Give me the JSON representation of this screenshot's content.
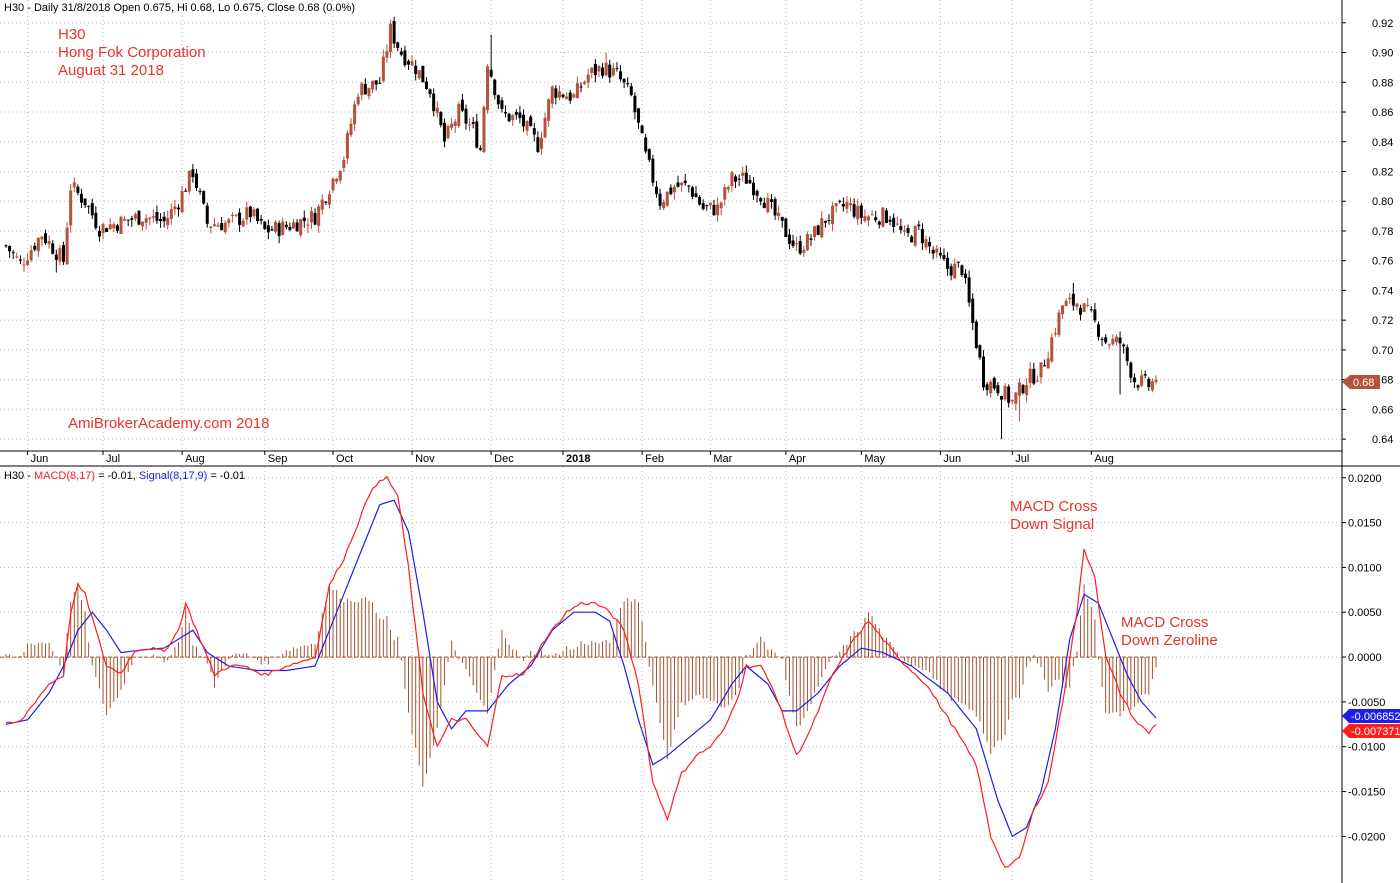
{
  "price_panel": {
    "header_prefix": "H30 - Daily 31/8/2018 Open 0.675, Hi 0.68, Lo 0.675, Close 0.68 (0.0%)",
    "symbol": "H30",
    "company": "Hong Fok Corporation",
    "date_label": "Auguat 31 2018",
    "watermark": "AmiBrokerAcademy.com  2018",
    "last_price_label": "0.68",
    "last_price_color": "#b5523b"
  },
  "macd_panel": {
    "header_prefix": "H30 - ",
    "macd_label": "MACD(8,17)",
    "macd_value_text": " = -0.01, ",
    "signal_label": "Signal(8,17,9)",
    "signal_value_text": " = -0.01",
    "annotation_cross_signal": [
      "MACD Cross",
      "Down Signal"
    ],
    "annotation_cross_zero": [
      "MACD Cross",
      "Down Zeroline"
    ],
    "signal_last_label": "-0.006852",
    "macd_last_label": "-0.007371"
  },
  "colors": {
    "up_candle": "#b5523b",
    "down_candle": "#000000",
    "macd_line": "#ff1e1e",
    "signal_line": "#1e1ee8",
    "histogram": "#a0522d",
    "annotation": "#e8342a",
    "grid": "#bbbbbb"
  },
  "chart_data": [
    {
      "type": "candlestick",
      "title": "H30 - Daily 31/8/2018 Open 0.675, Hi 0.68, Lo 0.675, Close 0.68 (0.0%)",
      "y_ticks": [
        "0.64",
        "0.66",
        "0.68",
        "0.70",
        "0.72",
        "0.74",
        "0.76",
        "0.78",
        "0.80",
        "0.82",
        "0.84",
        "0.86",
        "0.88",
        "0.90",
        "0.92"
      ],
      "ylim": [
        0.632,
        0.934
      ],
      "x_ticks": [
        {
          "label": "Jun",
          "bar": 6,
          "bold": false
        },
        {
          "label": "Jul",
          "bar": 27,
          "bold": false
        },
        {
          "label": "Aug",
          "bar": 49,
          "bold": false
        },
        {
          "label": "Sep",
          "bar": 72,
          "bold": false
        },
        {
          "label": "Oct",
          "bar": 91,
          "bold": false
        },
        {
          "label": "Nov",
          "bar": 113,
          "bold": false
        },
        {
          "label": "Dec",
          "bar": 135,
          "bold": false
        },
        {
          "label": "2018",
          "bar": 155,
          "bold": true
        },
        {
          "label": "Feb",
          "bar": 177,
          "bold": false
        },
        {
          "label": "Mar",
          "bar": 196,
          "bold": false
        },
        {
          "label": "Apr",
          "bar": 217,
          "bold": false
        },
        {
          "label": "May",
          "bar": 238,
          "bold": false
        },
        {
          "label": "Jun",
          "bar": 260,
          "bold": false
        },
        {
          "label": "Jul",
          "bar": 280,
          "bold": false
        },
        {
          "label": "Aug",
          "bar": 302,
          "bold": false
        }
      ],
      "n_bars": 321,
      "close_anchors": [
        [
          0,
          0.77
        ],
        [
          4,
          0.758
        ],
        [
          10,
          0.778
        ],
        [
          16,
          0.76
        ],
        [
          18,
          0.81
        ],
        [
          22,
          0.8
        ],
        [
          26,
          0.782
        ],
        [
          32,
          0.786
        ],
        [
          38,
          0.79
        ],
        [
          44,
          0.786
        ],
        [
          48,
          0.8
        ],
        [
          52,
          0.82
        ],
        [
          56,
          0.785
        ],
        [
          62,
          0.785
        ],
        [
          68,
          0.792
        ],
        [
          72,
          0.78
        ],
        [
          78,
          0.783
        ],
        [
          86,
          0.79
        ],
        [
          90,
          0.81
        ],
        [
          94,
          0.83
        ],
        [
          98,
          0.875
        ],
        [
          104,
          0.88
        ],
        [
          107,
          0.915
        ],
        [
          110,
          0.9
        ],
        [
          114,
          0.89
        ],
        [
          118,
          0.875
        ],
        [
          122,
          0.84
        ],
        [
          126,
          0.86
        ],
        [
          130,
          0.848
        ],
        [
          132,
          0.835
        ],
        [
          134,
          0.895
        ],
        [
          138,
          0.858
        ],
        [
          143,
          0.855
        ],
        [
          148,
          0.838
        ],
        [
          152,
          0.875
        ],
        [
          158,
          0.87
        ],
        [
          162,
          0.885
        ],
        [
          166,
          0.89
        ],
        [
          170,
          0.885
        ],
        [
          174,
          0.87
        ],
        [
          178,
          0.83
        ],
        [
          182,
          0.8
        ],
        [
          186,
          0.81
        ],
        [
          190,
          0.81
        ],
        [
          194,
          0.795
        ],
        [
          198,
          0.795
        ],
        [
          202,
          0.815
        ],
        [
          206,
          0.815
        ],
        [
          210,
          0.805
        ],
        [
          214,
          0.79
        ],
        [
          220,
          0.768
        ],
        [
          224,
          0.775
        ],
        [
          228,
          0.788
        ],
        [
          234,
          0.798
        ],
        [
          238,
          0.79
        ],
        [
          242,
          0.79
        ],
        [
          246,
          0.79
        ],
        [
          250,
          0.775
        ],
        [
          254,
          0.78
        ],
        [
          258,
          0.765
        ],
        [
          262,
          0.755
        ],
        [
          266,
          0.755
        ],
        [
          268,
          0.73
        ],
        [
          272,
          0.68
        ],
        [
          276,
          0.675
        ],
        [
          280,
          0.665
        ],
        [
          284,
          0.68
        ],
        [
          288,
          0.686
        ],
        [
          290,
          0.7
        ],
        [
          294,
          0.73
        ],
        [
          298,
          0.732
        ],
        [
          302,
          0.722
        ],
        [
          306,
          0.706
        ],
        [
          310,
          0.705
        ],
        [
          314,
          0.68
        ],
        [
          318,
          0.676
        ],
        [
          320,
          0.68
        ]
      ],
      "spikes": [
        [
          14,
          "lo",
          0.752
        ],
        [
          19,
          "hi",
          0.816
        ],
        [
          52,
          "hi",
          0.825
        ],
        [
          107,
          "hi",
          0.922
        ],
        [
          135,
          "hi",
          0.912
        ],
        [
          167,
          "hi",
          0.9
        ],
        [
          277,
          "lo",
          0.64
        ],
        [
          282,
          "lo",
          0.652
        ],
        [
          297,
          "hi",
          0.745
        ],
        [
          310,
          "lo",
          0.67
        ]
      ],
      "last_price": 0.68
    },
    {
      "type": "line",
      "title": "H30 - MACD(8,17) = -0.01, Signal(8,17,9) = -0.01",
      "y_ticks": [
        "-0.0200",
        "-0.0150",
        "-0.0100",
        "-0.0050",
        "0.0000",
        "0.0050",
        "0.0100",
        "0.0150",
        "0.0200"
      ],
      "ylim": [
        -0.0252,
        0.0212
      ],
      "series": [
        {
          "name": "MACD(8,17)",
          "anchors": [
            [
              0,
              -0.0075
            ],
            [
              4,
              -0.0072
            ],
            [
              8,
              -0.005
            ],
            [
              12,
              -0.003
            ],
            [
              16,
              -0.002
            ],
            [
              18,
              0.005
            ],
            [
              20,
              0.008
            ],
            [
              22,
              0.007
            ],
            [
              25,
              0.003
            ],
            [
              28,
              -0.001
            ],
            [
              32,
              -0.0018
            ],
            [
              36,
              0.0008
            ],
            [
              40,
              0.001
            ],
            [
              44,
              0.0006
            ],
            [
              48,
              0.003
            ],
            [
              50,
              0.006
            ],
            [
              54,
              0.002
            ],
            [
              58,
              -0.002
            ],
            [
              62,
              -0.001
            ],
            [
              66,
              -0.001
            ],
            [
              72,
              -0.002
            ],
            [
              78,
              -0.001
            ],
            [
              86,
              0.0
            ],
            [
              90,
              0.008
            ],
            [
              94,
              0.011
            ],
            [
              98,
              0.015
            ],
            [
              102,
              0.019
            ],
            [
              106,
              0.02
            ],
            [
              109,
              0.018
            ],
            [
              112,
              0.01
            ],
            [
              116,
              -0.004
            ],
            [
              120,
              -0.01
            ],
            [
              124,
              -0.007
            ],
            [
              128,
              -0.007
            ],
            [
              134,
              -0.01
            ],
            [
              138,
              -0.002
            ],
            [
              144,
              -0.002
            ],
            [
              150,
              0.002
            ],
            [
              156,
              0.005
            ],
            [
              160,
              0.006
            ],
            [
              164,
              0.006
            ],
            [
              168,
              0.005
            ],
            [
              172,
              0.003
            ],
            [
              176,
              -0.003
            ],
            [
              180,
              -0.014
            ],
            [
              184,
              -0.018
            ],
            [
              188,
              -0.013
            ],
            [
              192,
              -0.011
            ],
            [
              196,
              -0.01
            ],
            [
              200,
              -0.008
            ],
            [
              204,
              -0.004
            ],
            [
              206,
              -0.001
            ],
            [
              210,
              -0.001
            ],
            [
              214,
              -0.004
            ],
            [
              220,
              -0.011
            ],
            [
              224,
              -0.008
            ],
            [
              230,
              -0.002
            ],
            [
              236,
              0.002
            ],
            [
              240,
              0.004
            ],
            [
              244,
              0.002
            ],
            [
              248,
              0.0
            ],
            [
              256,
              -0.003
            ],
            [
              264,
              -0.008
            ],
            [
              270,
              -0.012
            ],
            [
              274,
              -0.02
            ],
            [
              278,
              -0.0235
            ],
            [
              282,
              -0.0225
            ],
            [
              286,
              -0.017
            ],
            [
              290,
              -0.014
            ],
            [
              294,
              -0.005
            ],
            [
              298,
              0.005
            ],
            [
              300,
              0.012
            ],
            [
              303,
              0.009
            ],
            [
              306,
              0.0
            ],
            [
              310,
              -0.004
            ],
            [
              314,
              -0.007
            ],
            [
              318,
              -0.0085
            ],
            [
              320,
              -0.0074
            ]
          ]
        },
        {
          "name": "Signal(8,17,9)",
          "anchors": [
            [
              0,
              -0.0075
            ],
            [
              6,
              -0.007
            ],
            [
              12,
              -0.004
            ],
            [
              16,
              -0.001
            ],
            [
              20,
              0.003
            ],
            [
              24,
              0.005
            ],
            [
              28,
              0.003
            ],
            [
              32,
              0.0005
            ],
            [
              38,
              0.0008
            ],
            [
              44,
              0.001
            ],
            [
              48,
              0.002
            ],
            [
              52,
              0.003
            ],
            [
              56,
              0.0005
            ],
            [
              62,
              -0.001
            ],
            [
              70,
              -0.0015
            ],
            [
              78,
              -0.0015
            ],
            [
              86,
              -0.001
            ],
            [
              90,
              0.003
            ],
            [
              96,
              0.009
            ],
            [
              100,
              0.013
            ],
            [
              104,
              0.017
            ],
            [
              108,
              0.0175
            ],
            [
              112,
              0.014
            ],
            [
              116,
              0.005
            ],
            [
              120,
              -0.005
            ],
            [
              124,
              -0.008
            ],
            [
              128,
              -0.006
            ],
            [
              134,
              -0.006
            ],
            [
              140,
              -0.003
            ],
            [
              146,
              -0.001
            ],
            [
              152,
              0.003
            ],
            [
              158,
              0.005
            ],
            [
              164,
              0.005
            ],
            [
              168,
              0.004
            ],
            [
              172,
              -0.001
            ],
            [
              176,
              -0.007
            ],
            [
              180,
              -0.012
            ],
            [
              184,
              -0.011
            ],
            [
              190,
              -0.009
            ],
            [
              196,
              -0.007
            ],
            [
              202,
              -0.003
            ],
            [
              206,
              -0.001
            ],
            [
              212,
              -0.003
            ],
            [
              216,
              -0.006
            ],
            [
              220,
              -0.006
            ],
            [
              226,
              -0.004
            ],
            [
              232,
              -0.001
            ],
            [
              238,
              0.001
            ],
            [
              244,
              0.0005
            ],
            [
              252,
              -0.001
            ],
            [
              262,
              -0.004
            ],
            [
              270,
              -0.008
            ],
            [
              276,
              -0.016
            ],
            [
              280,
              -0.02
            ],
            [
              284,
              -0.019
            ],
            [
              288,
              -0.015
            ],
            [
              292,
              -0.008
            ],
            [
              296,
              0.002
            ],
            [
              300,
              0.007
            ],
            [
              304,
              0.006
            ],
            [
              308,
              0.002
            ],
            [
              312,
              -0.002
            ],
            [
              316,
              -0.005
            ],
            [
              320,
              -0.0068
            ]
          ]
        }
      ],
      "histogram_name": "MACD - Signal"
    }
  ]
}
